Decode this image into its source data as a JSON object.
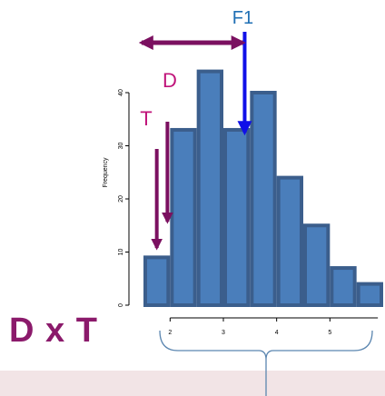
{
  "chart_data": {
    "type": "bar",
    "ylabel": "Frequency",
    "bins": [
      {
        "x0": 1.5,
        "x1": 2.0,
        "value": 9
      },
      {
        "x0": 2.0,
        "x1": 2.5,
        "value": 33
      },
      {
        "x0": 2.5,
        "x1": 3.0,
        "value": 44
      },
      {
        "x0": 3.0,
        "x1": 3.5,
        "value": 33
      },
      {
        "x0": 3.5,
        "x1": 4.0,
        "value": 40
      },
      {
        "x0": 4.0,
        "x1": 4.5,
        "value": 24
      },
      {
        "x0": 4.5,
        "x1": 5.0,
        "value": 15
      },
      {
        "x0": 5.0,
        "x1": 5.5,
        "value": 7
      },
      {
        "x0": 5.5,
        "x1": 6.0,
        "value": 4
      }
    ],
    "xticks": [
      2,
      3,
      4,
      5
    ],
    "yticks": [
      0,
      10,
      20,
      30,
      40
    ],
    "xlim": [
      1.5,
      6.0
    ],
    "ylim": [
      0,
      45
    ],
    "bar_fill": "#4a7ebb",
    "bar_edge": "#3b5e8c"
  },
  "annotations": {
    "f1_label": "F1",
    "d_label": "D",
    "t_label": "T",
    "dxt_label": "D x T",
    "f1_color": "#1f6fb4",
    "f1_arrow_color": "#1010e8",
    "d_color": "#c0147a",
    "arrow_color": "#7b1060",
    "brace_color": "#5b86b0",
    "f1_x": 3.4,
    "d_x": 1.95,
    "t_x": 1.75
  }
}
